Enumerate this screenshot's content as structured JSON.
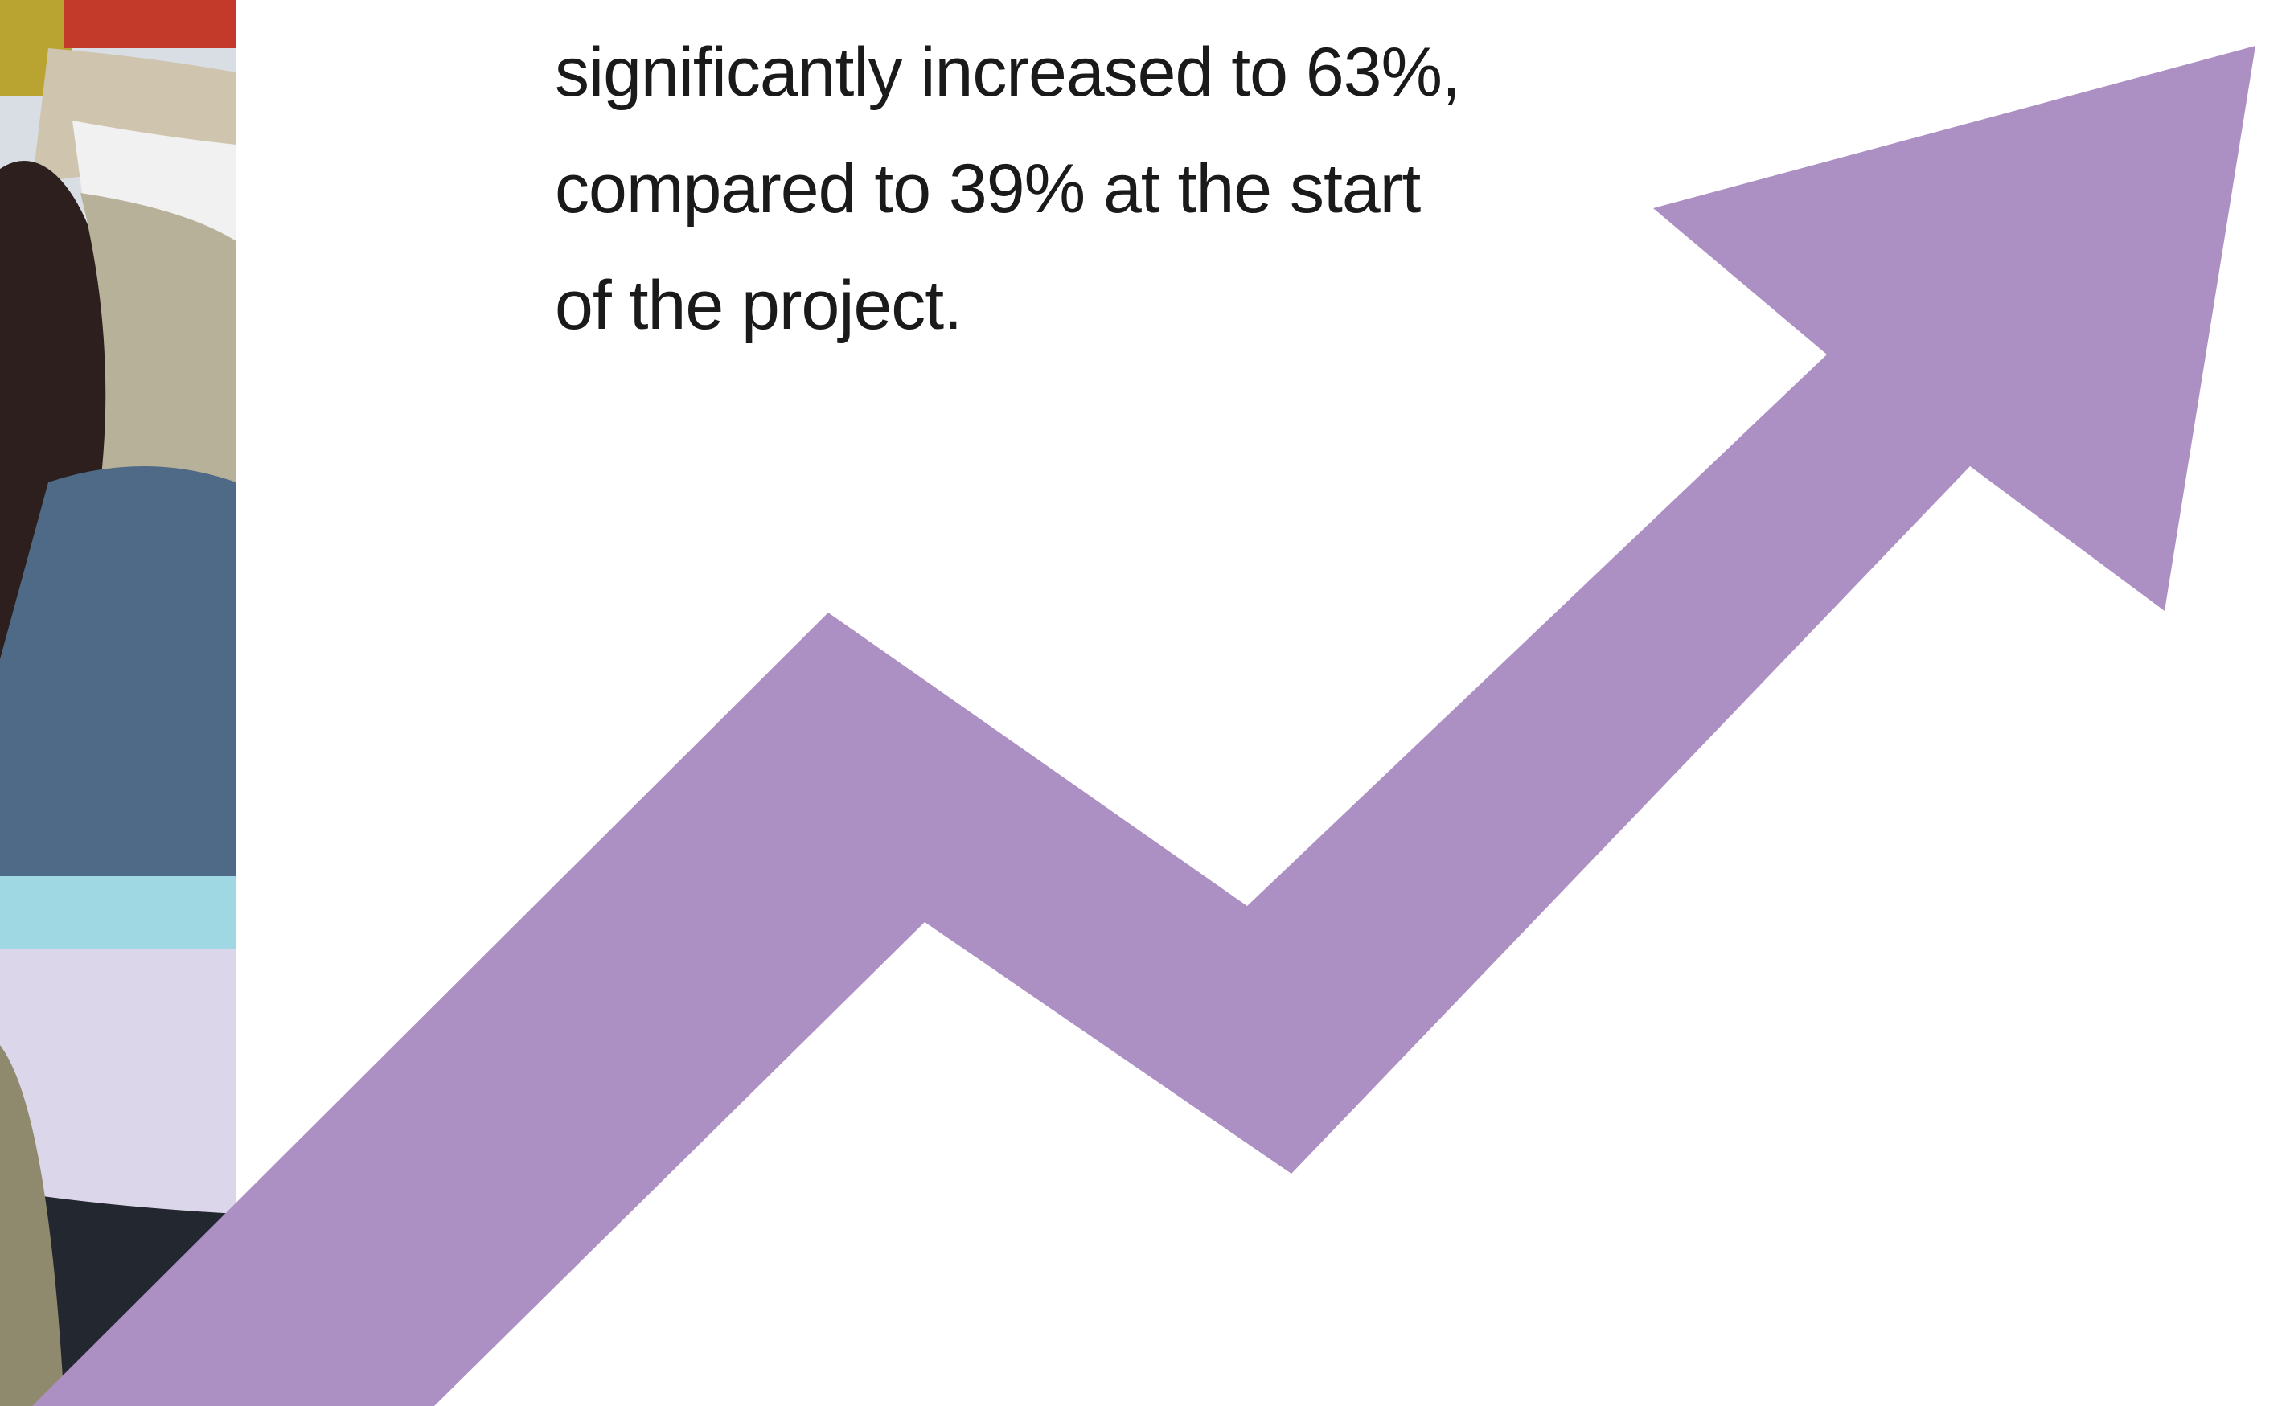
{
  "text": {
    "lines": [
      "significantly increased to 63%,",
      "compared to 39% at the start",
      "of the project."
    ]
  },
  "arrow": {
    "icon": "trend-up-arrow-icon",
    "color": "#AC8FC3"
  }
}
